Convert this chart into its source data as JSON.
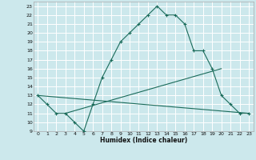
{
  "xlabel": "Humidex (Indice chaleur)",
  "bg_color": "#cce8ec",
  "grid_color": "#ffffff",
  "line_color": "#1a6b5a",
  "xlim": [
    -0.5,
    23.5
  ],
  "ylim": [
    9,
    23.5
  ],
  "xticks": [
    0,
    1,
    2,
    3,
    4,
    5,
    6,
    7,
    8,
    9,
    10,
    11,
    12,
    13,
    14,
    15,
    16,
    17,
    18,
    19,
    20,
    21,
    22,
    23
  ],
  "yticks": [
    9,
    10,
    11,
    12,
    13,
    14,
    15,
    16,
    17,
    18,
    19,
    20,
    21,
    22,
    23
  ],
  "line1_x": [
    0,
    1,
    2,
    3,
    4,
    5,
    6,
    7,
    8,
    9,
    10,
    11,
    12,
    13,
    14,
    15,
    16,
    17,
    18,
    19,
    20,
    21,
    22,
    23
  ],
  "line1_y": [
    13,
    12,
    11,
    11,
    10,
    9,
    12,
    15,
    17,
    19,
    20,
    21,
    22,
    23,
    22,
    22,
    21,
    18,
    18,
    16,
    13,
    12,
    11,
    11
  ],
  "line2_x": [
    0,
    23
  ],
  "line2_y": [
    13,
    11
  ],
  "line3_x": [
    3,
    20
  ],
  "line3_y": [
    11,
    16
  ]
}
